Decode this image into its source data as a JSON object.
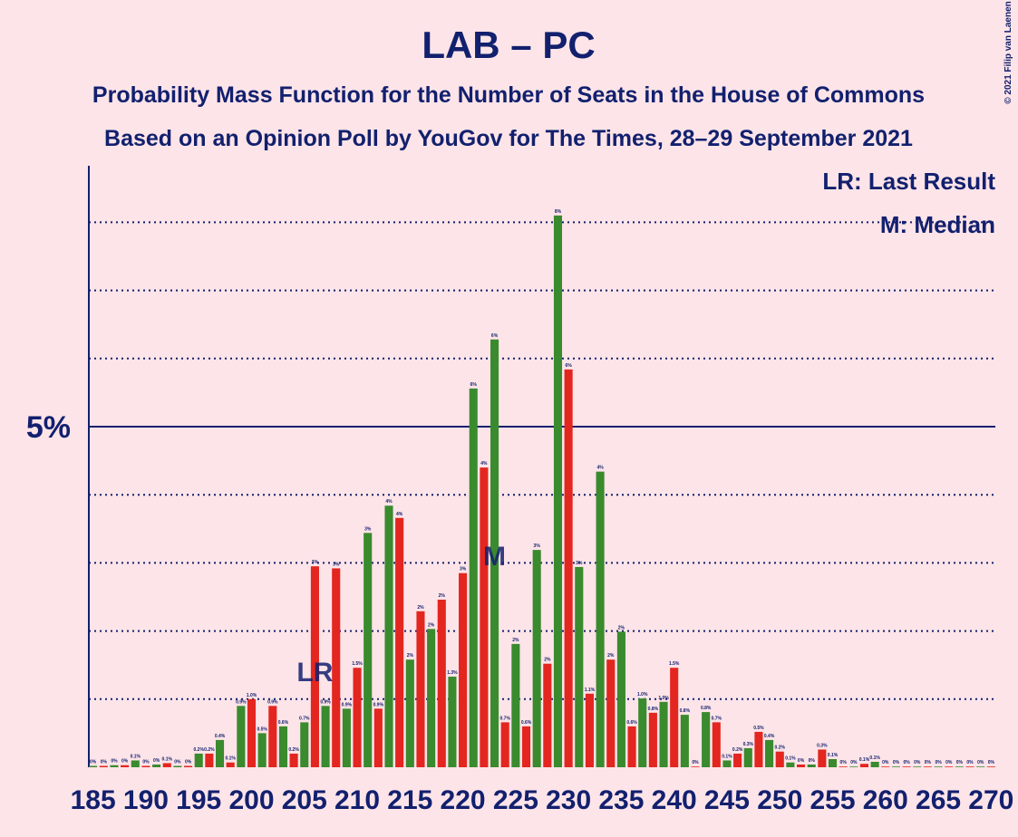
{
  "chart_data": {
    "type": "bar",
    "title": "LAB – PC",
    "subtitle": "Probability Mass Function for the Number of Seats in the House of Commons",
    "subtitle2": "Based on an Opinion Poll by YouGov for The Times, 28–29 September 2021",
    "copyright": "© 2021 Filip van Laenen",
    "legend": [
      "LR: Last Result",
      "M: Median"
    ],
    "annotations": [
      {
        "text": "LR",
        "x": 206
      },
      {
        "text": "M",
        "x": 223
      }
    ],
    "x": [
      185,
      186,
      187,
      188,
      189,
      190,
      191,
      192,
      193,
      194,
      195,
      196,
      197,
      198,
      199,
      200,
      201,
      202,
      203,
      204,
      205,
      206,
      207,
      208,
      209,
      210,
      211,
      212,
      213,
      214,
      215,
      216,
      217,
      218,
      219,
      220,
      221,
      222,
      223,
      224,
      225,
      226,
      227,
      228,
      229,
      230,
      231,
      232,
      233,
      234,
      235,
      236,
      237,
      238,
      239,
      240,
      241,
      242,
      243,
      244,
      245,
      246,
      247,
      248,
      249,
      250,
      251,
      252,
      253,
      254,
      255,
      256,
      257,
      258,
      259,
      260,
      261,
      262,
      263,
      264,
      265,
      266,
      267,
      268,
      269,
      270
    ],
    "values": [
      0.02,
      0.02,
      0.03,
      0.03,
      0.1,
      0.02,
      0.04,
      0.06,
      0.02,
      0.02,
      0.2,
      0.2,
      0.4,
      0.07,
      0.9,
      1.0,
      0.5,
      0.9,
      0.6,
      0.2,
      0.66,
      2.95,
      0.9,
      2.92,
      0.86,
      1.46,
      3.44,
      0.86,
      3.84,
      3.66,
      1.58,
      2.29,
      2.03,
      2.46,
      1.33,
      2.85,
      5.56,
      4.4,
      6.28,
      0.66,
      1.81,
      0.6,
      3.19,
      1.52,
      8.1,
      5.84,
      2.94,
      1.08,
      4.34,
      1.58,
      1.99,
      0.6,
      1.01,
      0.8,
      0.96,
      1.46,
      0.77,
      0.01,
      0.81,
      0.66,
      0.1,
      0.2,
      0.28,
      0.52,
      0.4,
      0.23,
      0.07,
      0.04,
      0.04,
      0.26,
      0.12,
      0.01,
      0.01,
      0.05,
      0.08,
      0.01,
      0.01,
      0.01,
      0.01,
      0.01,
      0.01,
      0.01,
      0.01,
      0.01,
      0.01,
      0.01
    ],
    "value_labels": [
      "0%",
      "0%",
      "0%",
      "0%",
      "0.1%",
      "0%",
      "0%",
      "0.1%",
      "0%",
      "0%",
      "0.2%",
      "0.2%",
      "0.4%",
      "0.1%",
      "0.9%",
      "1.0%",
      "0.5%",
      "0.9%",
      "0.6%",
      "0.2%",
      "0.7%",
      "3%",
      "0.9%",
      "3%",
      "0.9%",
      "1.5%",
      "3%",
      "0.9%",
      "4%",
      "4%",
      "2%",
      "2%",
      "2%",
      "2%",
      "1.3%",
      "3%",
      "6%",
      "4%",
      "6%",
      "0.7%",
      "2%",
      "0.6%",
      "3%",
      "2%",
      "8%",
      "6%",
      "3%",
      "1.1%",
      "4%",
      "2%",
      "2%",
      "0.6%",
      "1.0%",
      "0.8%",
      "1.0%",
      "1.5%",
      "0.8%",
      "0%",
      "0.8%",
      "0.7%",
      "0.1%",
      "0.2%",
      "0.3%",
      "0.5%",
      "0.4%",
      "0.2%",
      "0.1%",
      "0%",
      "0%",
      "0.3%",
      "0.1%",
      "0%",
      "0%",
      "0.1%",
      "0.1%",
      "0%",
      "0%",
      "0%",
      "0%",
      "0%",
      "0%",
      "0%",
      "0%",
      "0%",
      "0%",
      "0%"
    ],
    "color_pattern": [
      "#3a8a2e",
      "#e3261f"
    ],
    "xlim": [
      184.6,
      270.4
    ],
    "xticks": [
      185,
      190,
      195,
      200,
      205,
      210,
      215,
      220,
      225,
      230,
      235,
      240,
      245,
      250,
      255,
      260,
      265,
      270
    ],
    "ylim": [
      0,
      8.83
    ],
    "yticks": [
      {
        "value": 5,
        "label": "5%"
      }
    ],
    "ygrid": [
      1,
      2,
      3,
      4,
      6,
      7,
      8
    ]
  }
}
